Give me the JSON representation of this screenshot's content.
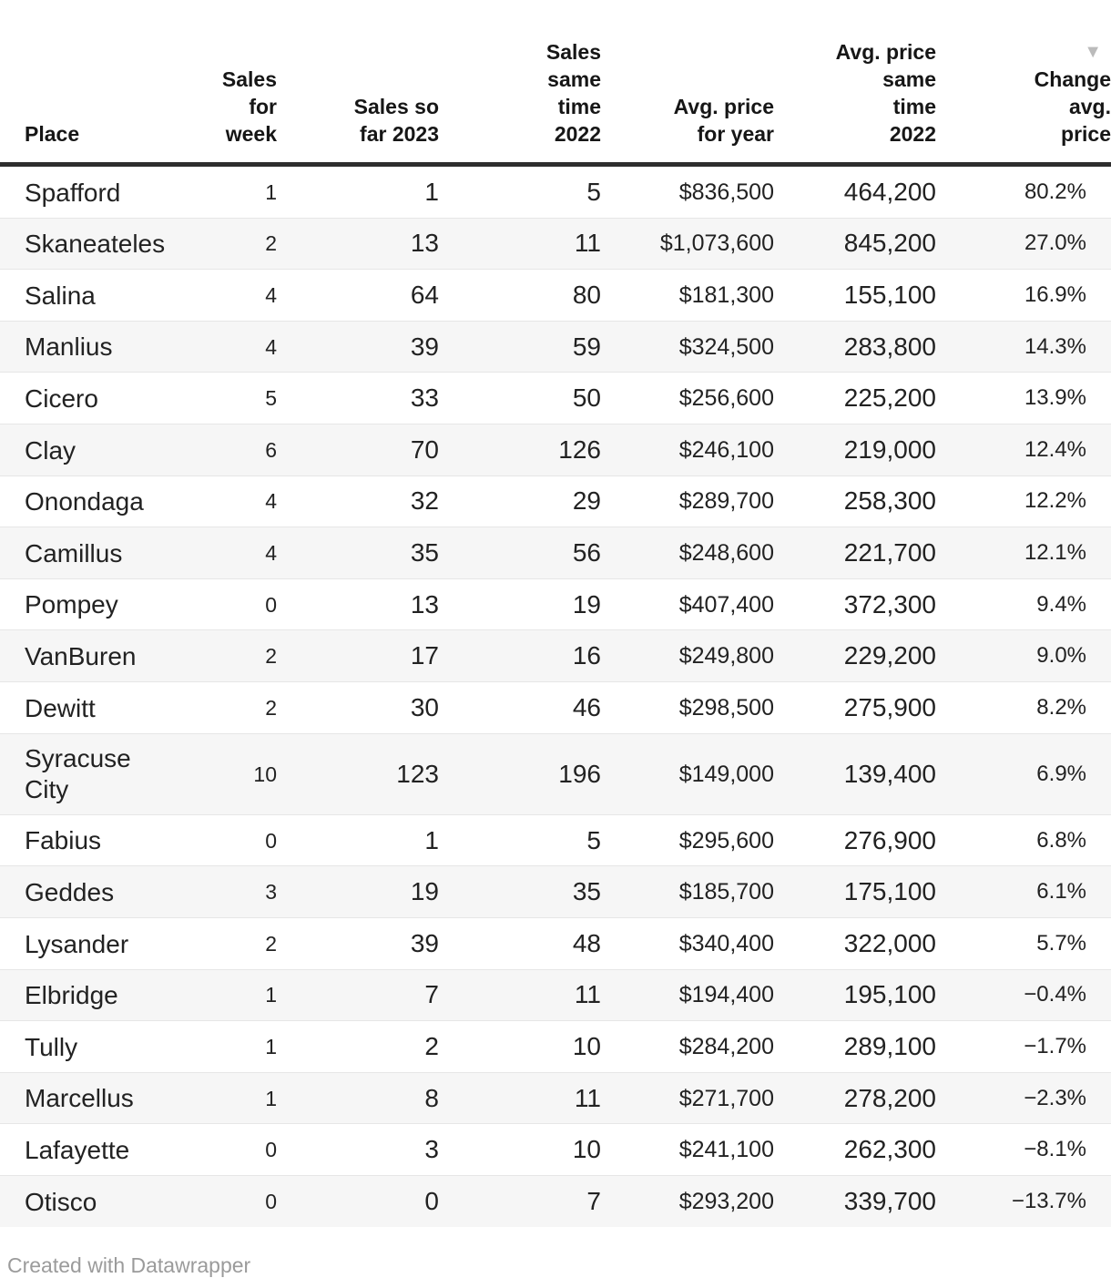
{
  "table": {
    "columns": [
      {
        "key": "place",
        "label": "Place",
        "align": "left",
        "sorted": false
      },
      {
        "key": "sales_week",
        "label": "Sales\nfor\nweek",
        "align": "right",
        "sorted": false
      },
      {
        "key": "sales_2023",
        "label": "Sales so\nfar 2023",
        "align": "right",
        "sorted": false
      },
      {
        "key": "sales_2022",
        "label": "Sales\nsame\ntime\n2022",
        "align": "right",
        "sorted": false
      },
      {
        "key": "price_year",
        "label": "Avg. price\nfor year",
        "align": "right",
        "sorted": false
      },
      {
        "key": "price_2022",
        "label": "Avg. price\nsame\ntime\n2022",
        "align": "right",
        "sorted": false
      },
      {
        "key": "change",
        "label": "Change\navg.\nprice",
        "align": "right",
        "sorted": true
      }
    ],
    "rows": [
      {
        "place": "Spafford",
        "sales_week": "1",
        "sales_2023": "1",
        "sales_2022": "5",
        "price_year": "$836,500",
        "price_2022": "464,200",
        "change": "80.2%"
      },
      {
        "place": "Skaneateles",
        "sales_week": "2",
        "sales_2023": "13",
        "sales_2022": "11",
        "price_year": "$1,073,600",
        "price_2022": "845,200",
        "change": "27.0%"
      },
      {
        "place": "Salina",
        "sales_week": "4",
        "sales_2023": "64",
        "sales_2022": "80",
        "price_year": "$181,300",
        "price_2022": "155,100",
        "change": "16.9%"
      },
      {
        "place": "Manlius",
        "sales_week": "4",
        "sales_2023": "39",
        "sales_2022": "59",
        "price_year": "$324,500",
        "price_2022": "283,800",
        "change": "14.3%"
      },
      {
        "place": "Cicero",
        "sales_week": "5",
        "sales_2023": "33",
        "sales_2022": "50",
        "price_year": "$256,600",
        "price_2022": "225,200",
        "change": "13.9%"
      },
      {
        "place": "Clay",
        "sales_week": "6",
        "sales_2023": "70",
        "sales_2022": "126",
        "price_year": "$246,100",
        "price_2022": "219,000",
        "change": "12.4%"
      },
      {
        "place": "Onondaga",
        "sales_week": "4",
        "sales_2023": "32",
        "sales_2022": "29",
        "price_year": "$289,700",
        "price_2022": "258,300",
        "change": "12.2%"
      },
      {
        "place": "Camillus",
        "sales_week": "4",
        "sales_2023": "35",
        "sales_2022": "56",
        "price_year": "$248,600",
        "price_2022": "221,700",
        "change": "12.1%"
      },
      {
        "place": "Pompey",
        "sales_week": "0",
        "sales_2023": "13",
        "sales_2022": "19",
        "price_year": "$407,400",
        "price_2022": "372,300",
        "change": "9.4%"
      },
      {
        "place": "VanBuren",
        "sales_week": "2",
        "sales_2023": "17",
        "sales_2022": "16",
        "price_year": "$249,800",
        "price_2022": "229,200",
        "change": "9.0%"
      },
      {
        "place": "Dewitt",
        "sales_week": "2",
        "sales_2023": "30",
        "sales_2022": "46",
        "price_year": "$298,500",
        "price_2022": "275,900",
        "change": "8.2%"
      },
      {
        "place": "Syracuse City",
        "sales_week": "10",
        "sales_2023": "123",
        "sales_2022": "196",
        "price_year": "$149,000",
        "price_2022": "139,400",
        "change": "6.9%"
      },
      {
        "place": "Fabius",
        "sales_week": "0",
        "sales_2023": "1",
        "sales_2022": "5",
        "price_year": "$295,600",
        "price_2022": "276,900",
        "change": "6.8%"
      },
      {
        "place": "Geddes",
        "sales_week": "3",
        "sales_2023": "19",
        "sales_2022": "35",
        "price_year": "$185,700",
        "price_2022": "175,100",
        "change": "6.1%"
      },
      {
        "place": "Lysander",
        "sales_week": "2",
        "sales_2023": "39",
        "sales_2022": "48",
        "price_year": "$340,400",
        "price_2022": "322,000",
        "change": "5.7%"
      },
      {
        "place": "Elbridge",
        "sales_week": "1",
        "sales_2023": "7",
        "sales_2022": "11",
        "price_year": "$194,400",
        "price_2022": "195,100",
        "change": "−0.4%"
      },
      {
        "place": "Tully",
        "sales_week": "1",
        "sales_2023": "2",
        "sales_2022": "10",
        "price_year": "$284,200",
        "price_2022": "289,100",
        "change": "−1.7%"
      },
      {
        "place": "Marcellus",
        "sales_week": "1",
        "sales_2023": "8",
        "sales_2022": "11",
        "price_year": "$271,700",
        "price_2022": "278,200",
        "change": "−2.3%"
      },
      {
        "place": "Lafayette",
        "sales_week": "0",
        "sales_2023": "3",
        "sales_2022": "10",
        "price_year": "$241,100",
        "price_2022": "262,300",
        "change": "−8.1%"
      },
      {
        "place": "Otisco",
        "sales_week": "0",
        "sales_2023": "0",
        "sales_2022": "7",
        "price_year": "$293,200",
        "price_2022": "339,700",
        "change": "−13.7%"
      }
    ]
  },
  "icons": {
    "sort_desc": "▼"
  },
  "colors": {
    "header_text": "#161616",
    "body_text": "#222222",
    "header_border": "#2e2e2e",
    "row_separator": "#e6e6e6",
    "stripe_background": "#f6f6f6",
    "sort_arrow": "#bbbbbb",
    "credit_text": "#9b9b9b"
  },
  "footer": {
    "credit": "Created with Datawrapper"
  }
}
